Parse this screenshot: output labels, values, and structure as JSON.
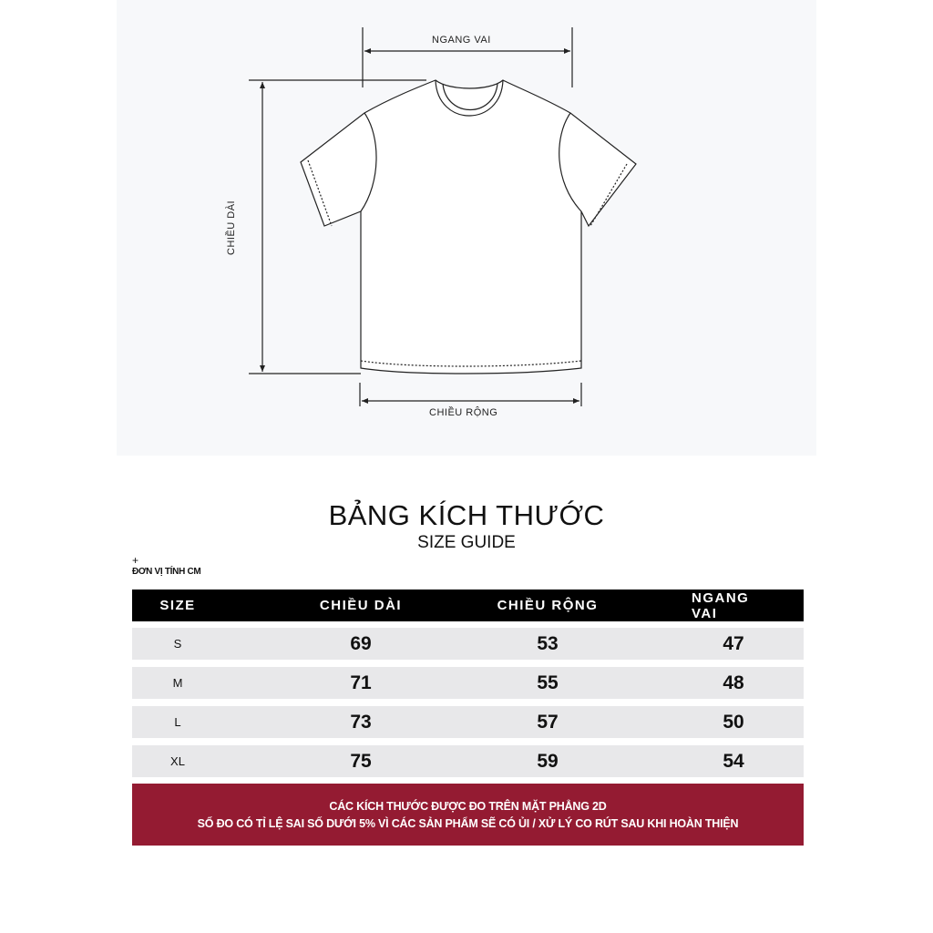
{
  "diagram": {
    "shoulder_label": "NGANG VAI",
    "length_label": "CHIỀU DÀI",
    "width_label": "CHIỀU RỘNG"
  },
  "title": "BẢNG KÍCH THƯỚC",
  "subtitle": "SIZE GUIDE",
  "plus": "+",
  "unit": "ĐƠN VỊ TÍNH CM",
  "table": {
    "headers": [
      "SIZE",
      "CHIỀU DÀI",
      "CHIỀU RỘNG",
      "NGANG VAI"
    ],
    "rows": [
      [
        "S",
        "69",
        "53",
        "47"
      ],
      [
        "M",
        "71",
        "55",
        "48"
      ],
      [
        "L",
        "73",
        "57",
        "50"
      ],
      [
        "XL",
        "75",
        "59",
        "54"
      ]
    ]
  },
  "note": {
    "line1": "CÁC KÍCH THƯỚC ĐƯỢC ĐO TRÊN MẶT PHẲNG 2D",
    "line2": "SỐ ĐO CÓ TỈ LỆ SAI SỐ DƯỚI 5% VÌ CÁC SẢN PHẨM SẼ CÓ ỦI / XỬ LÝ CO RÚT SAU KHI HOÀN THIỆN"
  },
  "colors": {
    "header_bg": "#000000",
    "row_bg": "#e8e8ea",
    "note_bg": "#941b32",
    "panel_bg": "#f7f8fa"
  }
}
